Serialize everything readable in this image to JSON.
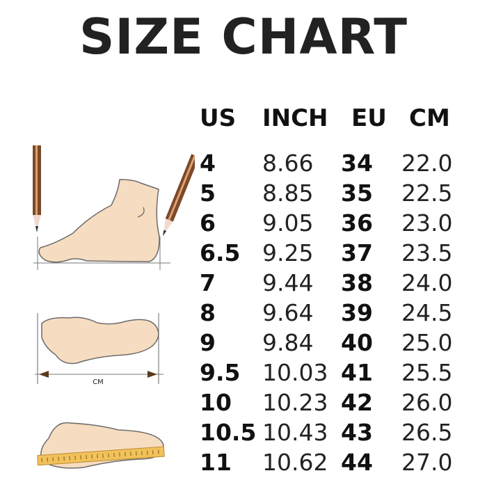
{
  "title": "SIZE CHART",
  "headers": [
    "US",
    "INCH",
    "EU",
    "CM"
  ],
  "rows": [
    [
      "4",
      "8.66",
      "34",
      "22.0"
    ],
    [
      "5",
      "8.85",
      "35",
      "22.5"
    ],
    [
      "6",
      "9.05",
      "36",
      "23.0"
    ],
    [
      "6.5",
      "9.25",
      "37",
      "23.5"
    ],
    [
      "7",
      "9.44",
      "38",
      "24.0"
    ],
    [
      "8",
      "9.64",
      "39",
      "24.5"
    ],
    [
      "9",
      "9.84",
      "40",
      "25.0"
    ],
    [
      "9.5",
      "10.03",
      "41",
      "25.5"
    ],
    [
      "10",
      "10.23",
      "42",
      "26.0"
    ],
    [
      "10.5",
      "10.43",
      "43",
      "26.5"
    ],
    [
      "11",
      "10.62",
      "44",
      "27.0"
    ]
  ],
  "illustrations": {
    "diagram_label": "CM",
    "icons": [
      "pencil-icon",
      "foot-side-icon",
      "foot-outline-icon",
      "ruler-icon"
    ],
    "colors": {
      "skin": "#f6dcc0",
      "outline": "#6b6b6b",
      "pencil": "#7a4a2a",
      "ruler": "#f2c25a"
    }
  }
}
